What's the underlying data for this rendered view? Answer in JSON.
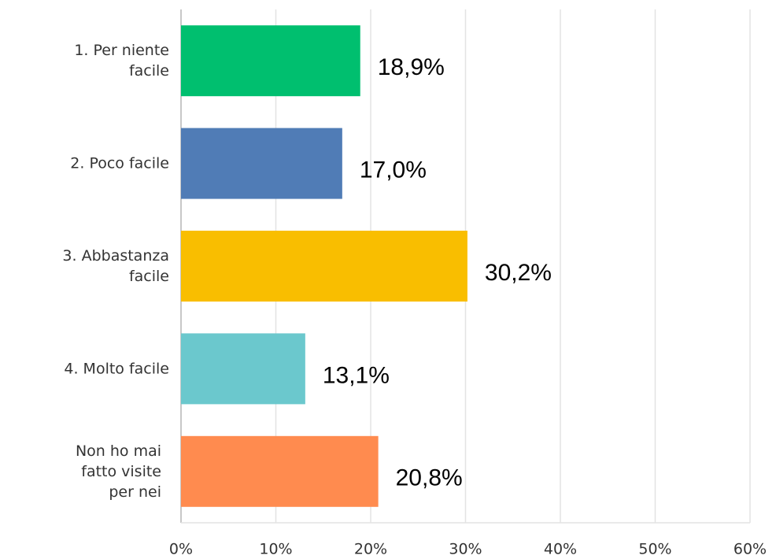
{
  "chart_data": {
    "type": "barh",
    "categories": [
      [
        "1. Per niente",
        "facile"
      ],
      [
        "2. Poco facile"
      ],
      [
        "3. Abbastanza",
        "facile"
      ],
      [
        "4. Molto facile"
      ],
      [
        "Non ho mai",
        "fatto visite",
        "per nei"
      ]
    ],
    "values": [
      18.9,
      17.0,
      30.2,
      13.1,
      20.8
    ],
    "value_labels": [
      "18,9%",
      "17,0%",
      "30,2%",
      "13,1%",
      "20,8%"
    ],
    "colors": [
      "#00bf6f",
      "#507cb6",
      "#f9be00",
      "#6bc8cd",
      "#ff8b4f"
    ],
    "xlim": [
      0,
      60
    ],
    "xticks": [
      {
        "value": 0,
        "label": "0%"
      },
      {
        "value": 10,
        "label": "10%"
      },
      {
        "value": 20,
        "label": "20%"
      },
      {
        "value": 30,
        "label": "30%"
      },
      {
        "value": 40,
        "label": "40%"
      },
      {
        "value": 50,
        "label": "50%"
      },
      {
        "value": 60,
        "label": "60%"
      }
    ],
    "grid": true
  }
}
